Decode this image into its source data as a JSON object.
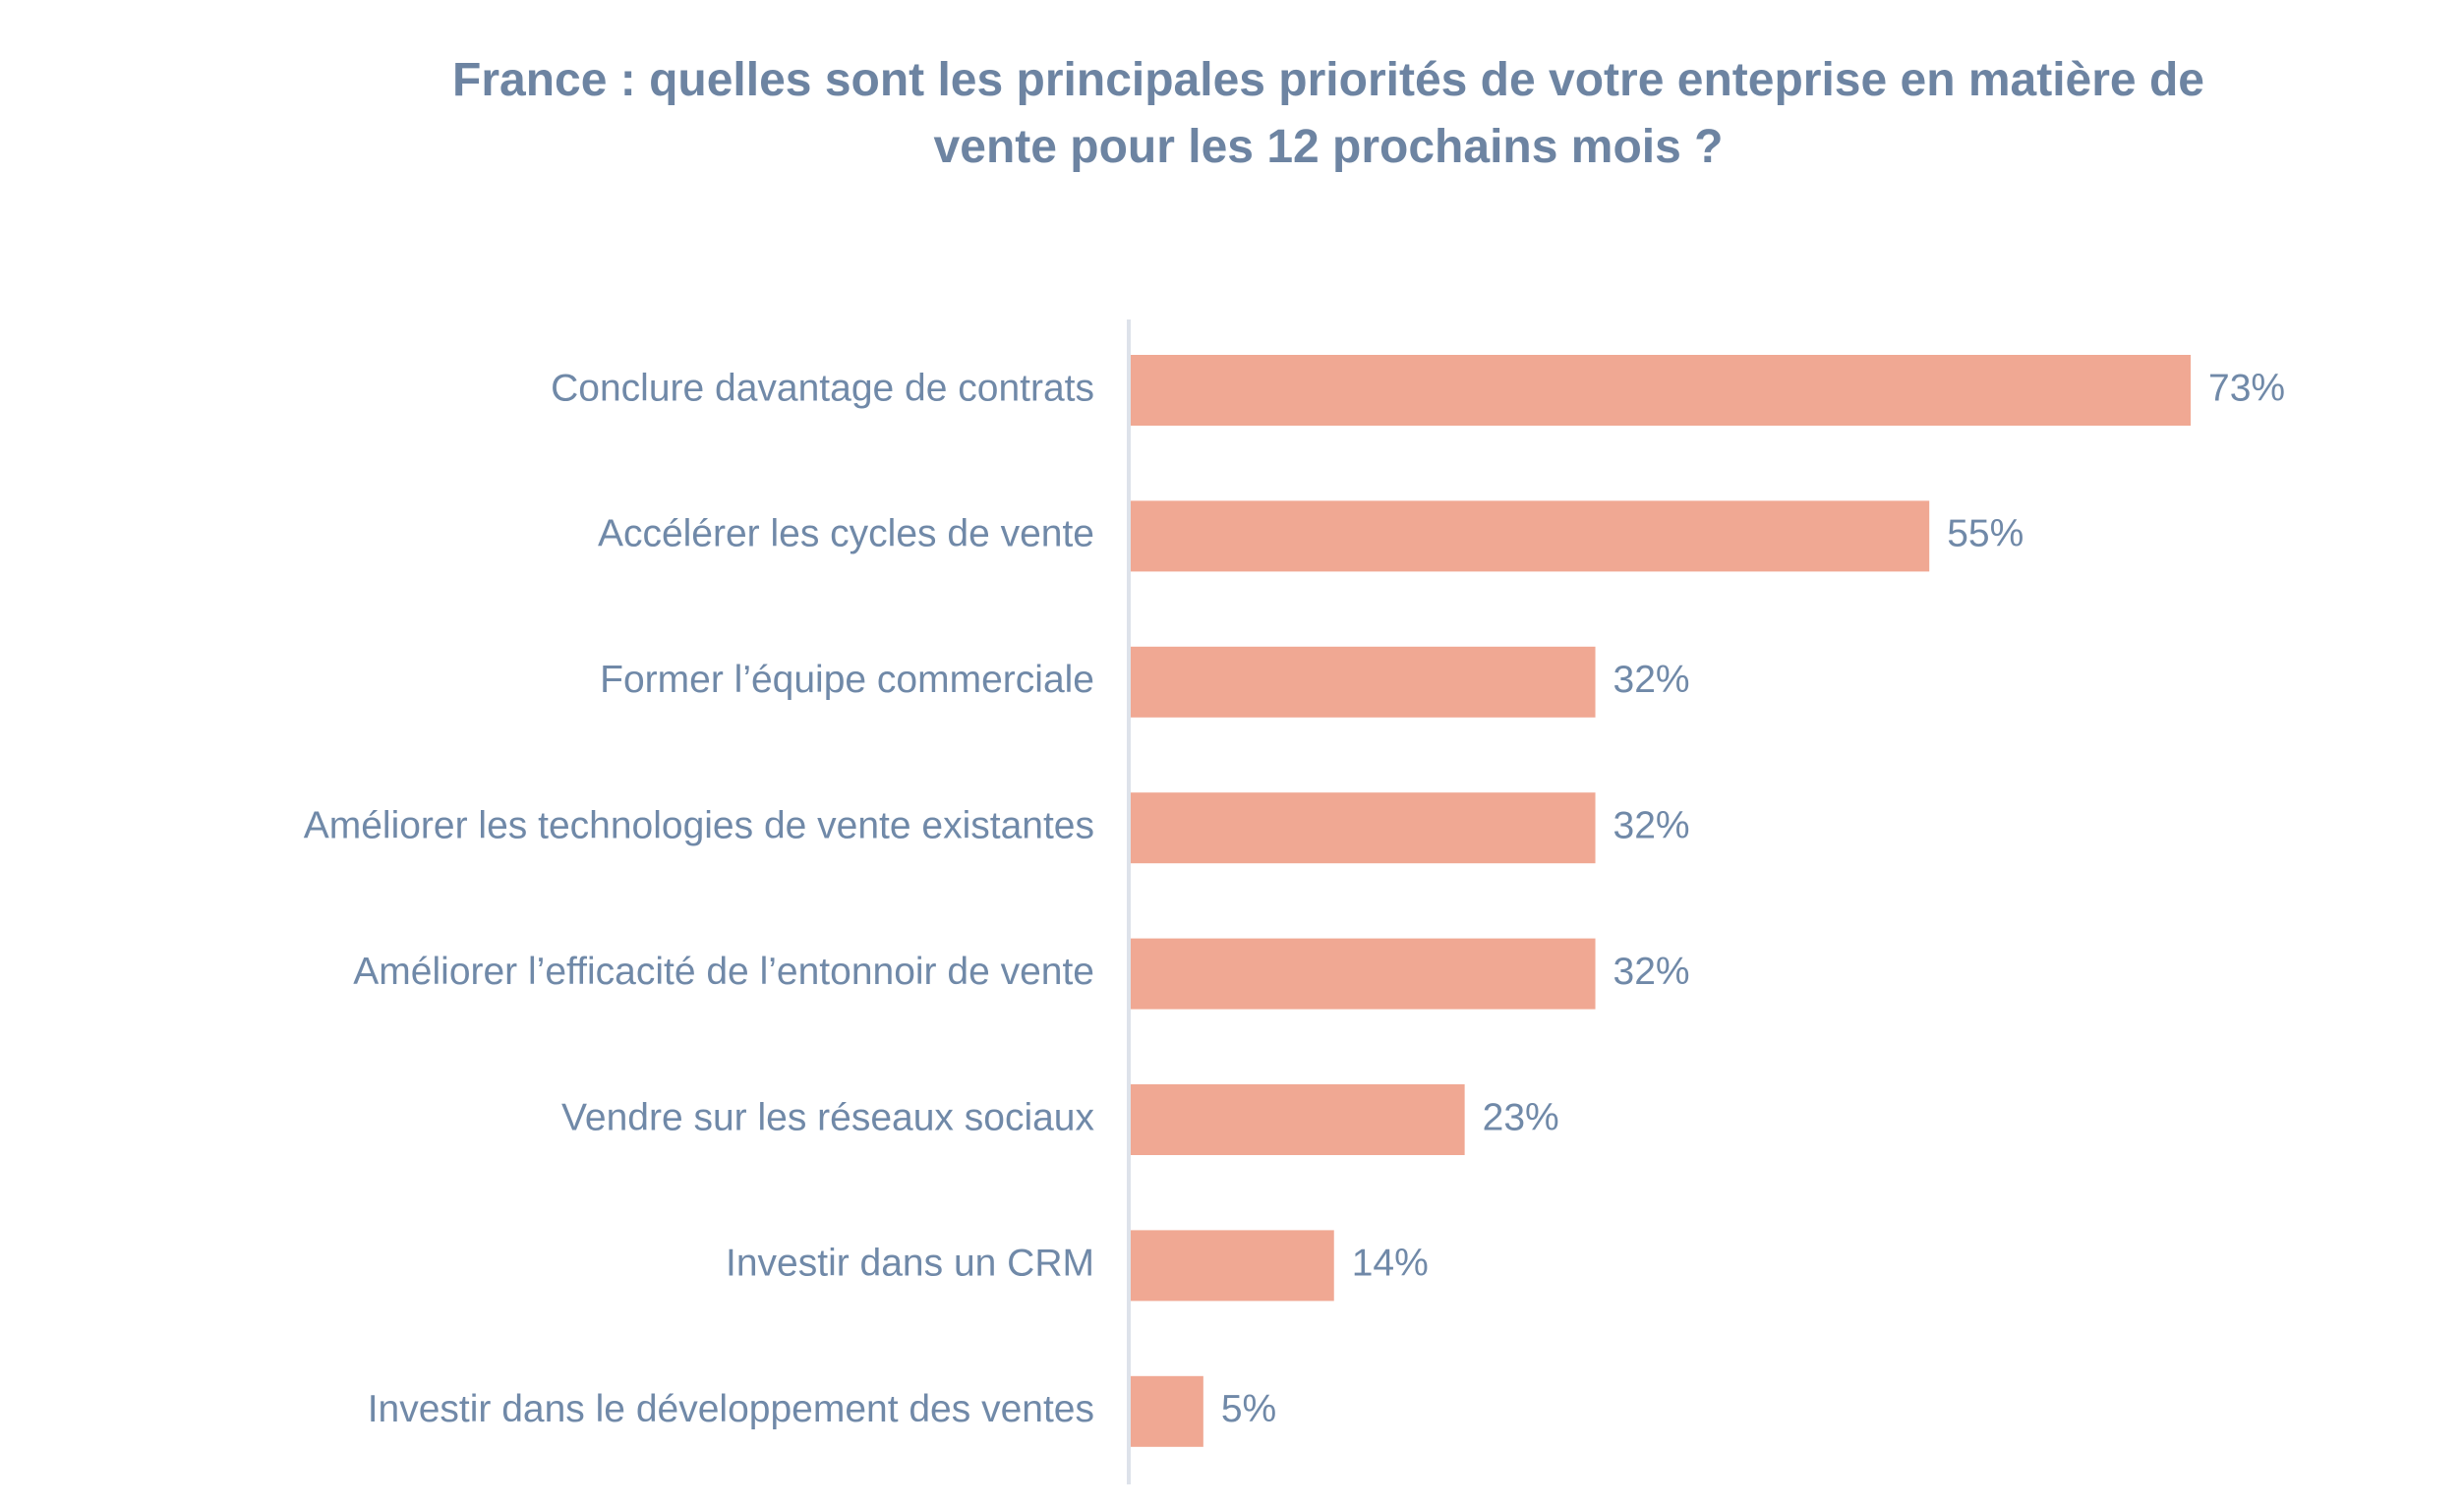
{
  "chart_data": {
    "type": "bar",
    "orientation": "horizontal",
    "title": "France : quelles sont les principales priorités de votre enteprise en matière de vente pour les 12 prochains mois ?",
    "categories": [
      "Conclure davantage de contrats",
      "Accélérer les cycles de vente",
      "Former l’équipe commerciale",
      "Améliorer les technologies de vente existantes",
      "Améliorer l’efficacité de l’entonnoir de vente",
      "Vendre sur les réseaux sociaux",
      "Investir dans un CRM",
      "Investir dans le développement des ventes"
    ],
    "values": [
      73,
      55,
      32,
      32,
      32,
      23,
      14,
      5
    ],
    "value_labels": [
      "73%",
      "55%",
      "32%",
      "32%",
      "32%",
      "23%",
      "14%",
      "5%"
    ],
    "color": "#f0a893"
  }
}
